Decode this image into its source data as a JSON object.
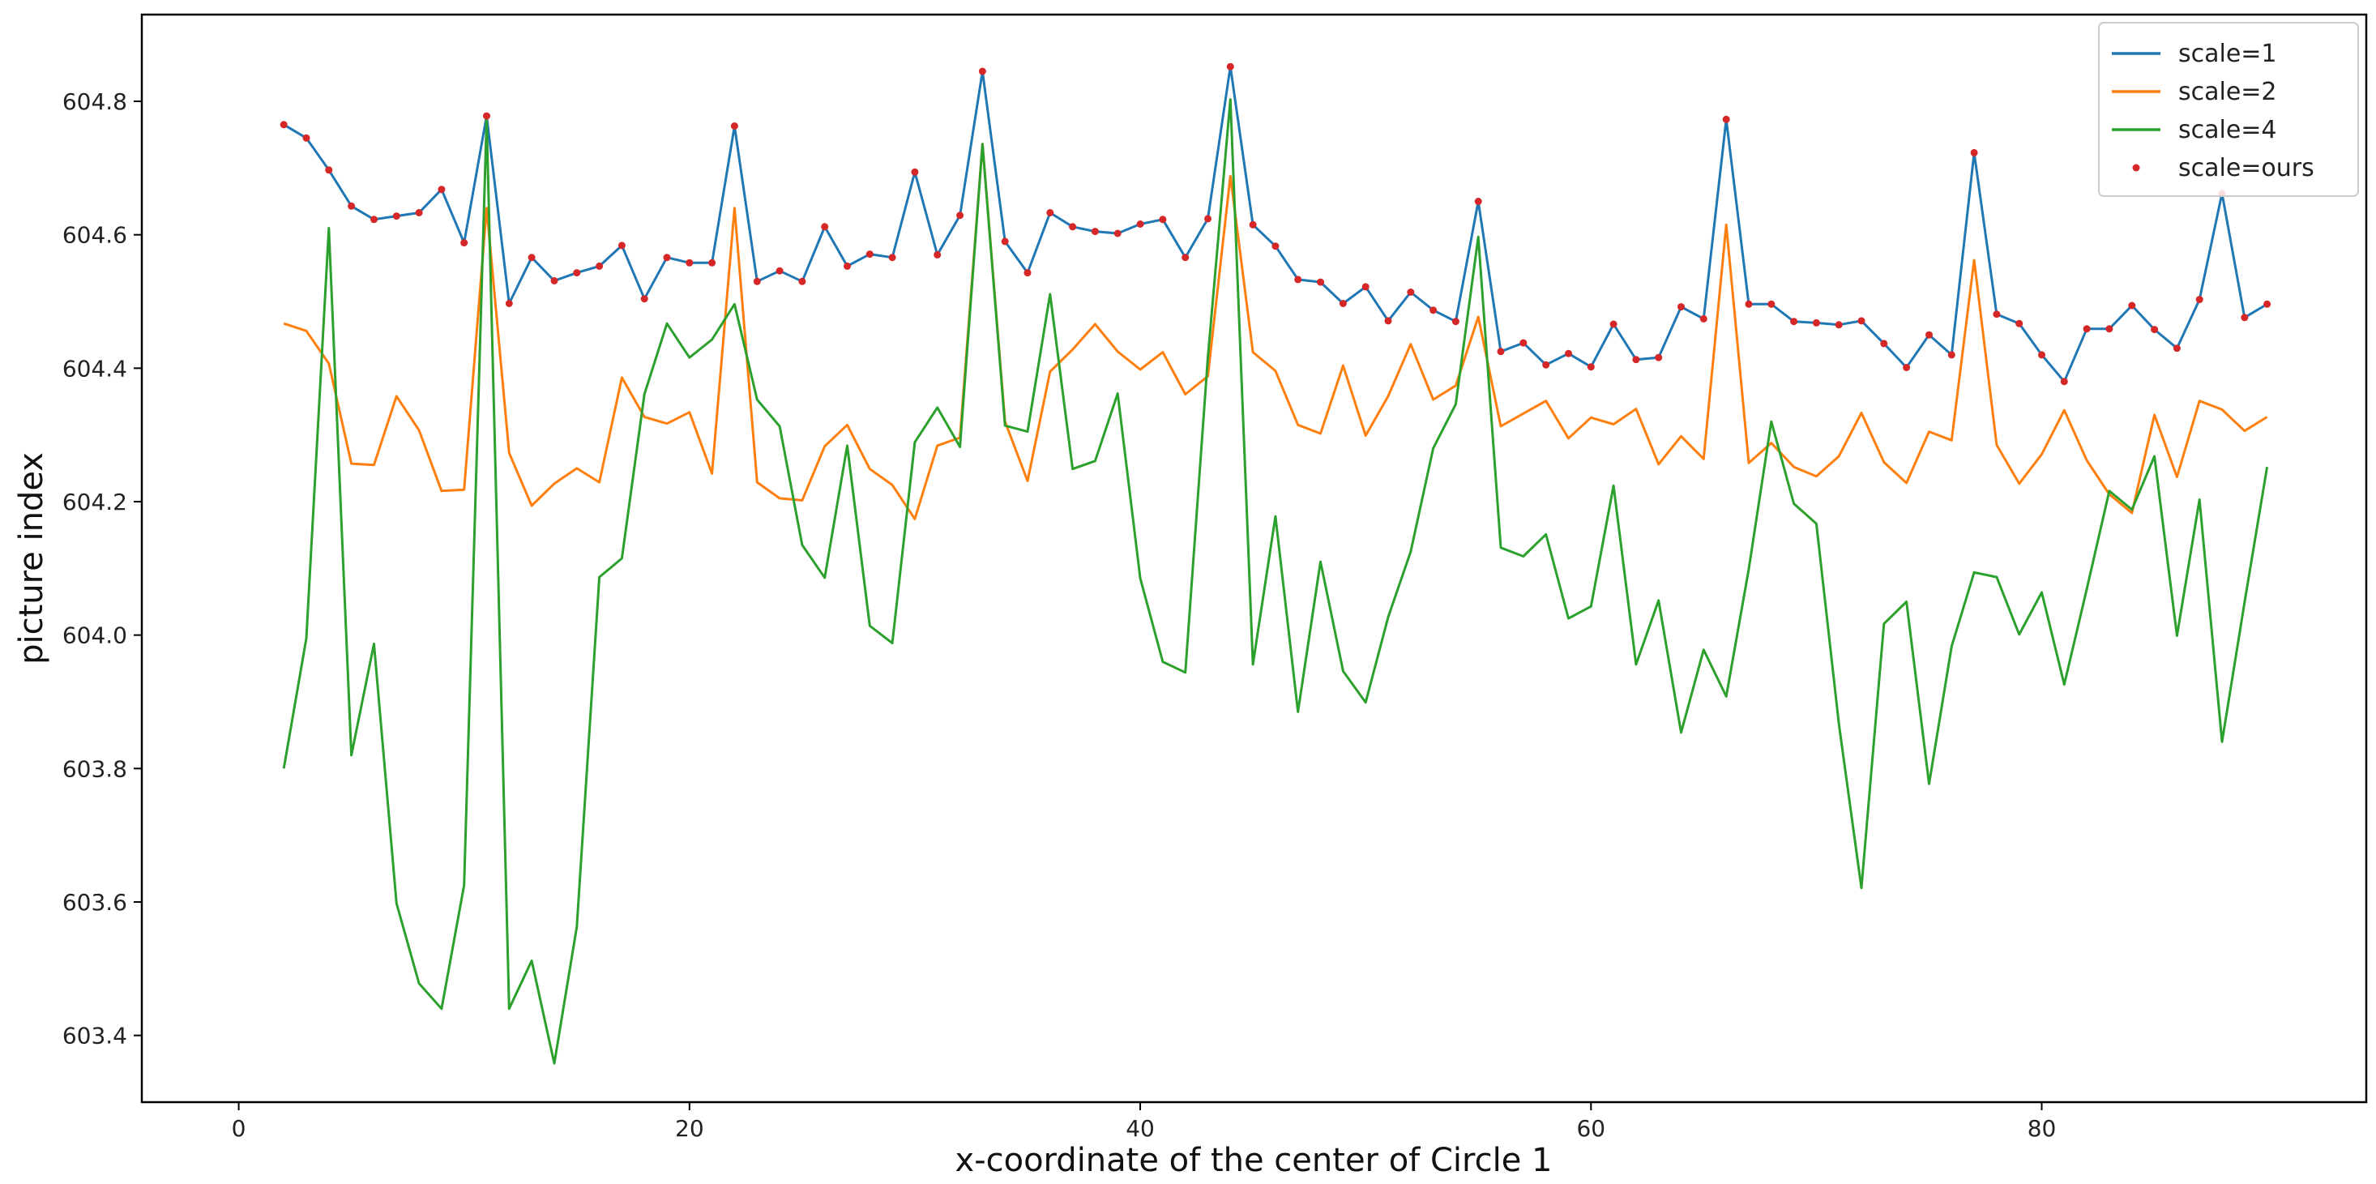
{
  "chart_data": {
    "type": "line",
    "title": "",
    "xlabel": "x-coordinate of the center of Circle 1",
    "ylabel": "picture index",
    "xlim": [
      -4.3,
      94.4
    ],
    "ylim": [
      603.3,
      604.93
    ],
    "xticks": [
      0,
      20,
      40,
      60,
      80
    ],
    "yticks": [
      603.4,
      603.6,
      603.8,
      604.0,
      604.2,
      604.4,
      604.6,
      604.8
    ],
    "grid": false,
    "legend_position": "top-right",
    "x": [
      2,
      3,
      4,
      5,
      6,
      7,
      8,
      9,
      10,
      11,
      12,
      13,
      14,
      15,
      16,
      17,
      18,
      19,
      20,
      21,
      22,
      23,
      24,
      25,
      26,
      27,
      28,
      29,
      30,
      31,
      32,
      33,
      34,
      35,
      36,
      37,
      38,
      39,
      40,
      41,
      42,
      43,
      44,
      45,
      46,
      47,
      48,
      49,
      50,
      51,
      52,
      53,
      54,
      55,
      56,
      57,
      58,
      59,
      60,
      61,
      62,
      63,
      64,
      65,
      66,
      67,
      68,
      69,
      70,
      71,
      72,
      73,
      74,
      75,
      76,
      77,
      78,
      79,
      80,
      81,
      82,
      83,
      84,
      85,
      86,
      87,
      88,
      89,
      90
    ],
    "series": [
      {
        "name": "scale=1",
        "color": "#1f77b4",
        "style": "line",
        "values": [
          604.765,
          604.745,
          604.697,
          604.643,
          604.623,
          604.628,
          604.633,
          604.668,
          604.588,
          604.778,
          604.497,
          604.566,
          604.531,
          604.543,
          604.553,
          604.584,
          604.504,
          604.566,
          604.558,
          604.558,
          604.763,
          604.53,
          604.546,
          604.53,
          604.612,
          604.553,
          604.571,
          604.566,
          604.694,
          604.57,
          604.629,
          604.845,
          604.59,
          604.543,
          604.633,
          604.612,
          604.605,
          604.602,
          604.616,
          604.623,
          604.566,
          604.624,
          604.852,
          604.615,
          604.583,
          604.533,
          604.529,
          604.497,
          604.522,
          604.471,
          604.514,
          604.487,
          604.47,
          604.65,
          604.425,
          604.438,
          604.405,
          604.422,
          604.402,
          604.466,
          604.413,
          604.416,
          604.492,
          604.474,
          604.773,
          604.496,
          604.496,
          604.47,
          604.468,
          604.465,
          604.471,
          604.437,
          604.401,
          604.45,
          604.42,
          604.723,
          604.481,
          604.467,
          604.42,
          604.38,
          604.459,
          604.459,
          604.494,
          604.458,
          604.43,
          604.503,
          604.662,
          604.476,
          604.496
        ]
      },
      {
        "name": "scale=2",
        "color": "#ff7f0e",
        "style": "line",
        "values": [
          604.467,
          604.456,
          604.407,
          604.257,
          604.255,
          604.358,
          604.307,
          604.216,
          604.218,
          604.64,
          604.273,
          604.194,
          604.227,
          604.25,
          604.229,
          604.386,
          604.327,
          604.317,
          604.334,
          604.242,
          604.64,
          604.229,
          604.205,
          604.202,
          604.283,
          604.315,
          604.249,
          604.225,
          604.174,
          604.284,
          604.296,
          604.736,
          604.32,
          604.231,
          604.395,
          604.428,
          604.466,
          604.425,
          604.398,
          604.424,
          604.361,
          604.388,
          604.688,
          604.424,
          604.396,
          604.315,
          604.302,
          604.404,
          604.299,
          604.358,
          604.436,
          604.353,
          604.374,
          604.477,
          604.313,
          604.332,
          604.351,
          604.295,
          604.326,
          604.316,
          604.339,
          604.256,
          604.298,
          604.264,
          604.615,
          604.258,
          604.288,
          604.252,
          604.238,
          604.268,
          604.333,
          604.259,
          604.228,
          604.305,
          604.292,
          604.562,
          604.285,
          604.227,
          604.271,
          604.337,
          604.262,
          604.211,
          604.183,
          604.33,
          604.237,
          604.351,
          604.338,
          604.306,
          604.327
        ]
      },
      {
        "name": "scale=4",
        "color": "#2ca02c",
        "style": "line",
        "values": [
          603.8,
          603.995,
          604.61,
          603.82,
          603.987,
          603.598,
          603.478,
          603.44,
          603.625,
          604.773,
          603.44,
          603.512,
          603.358,
          603.563,
          604.087,
          604.115,
          604.361,
          604.467,
          604.416,
          604.443,
          604.496,
          604.353,
          604.313,
          604.135,
          604.086,
          604.284,
          604.014,
          603.988,
          604.289,
          604.341,
          604.282,
          604.736,
          604.314,
          604.305,
          604.511,
          604.249,
          604.261,
          604.362,
          604.085,
          603.96,
          603.944,
          604.416,
          604.803,
          603.956,
          604.178,
          603.885,
          604.11,
          603.946,
          603.899,
          604.027,
          604.125,
          604.28,
          604.346,
          604.597,
          604.131,
          604.118,
          604.151,
          604.025,
          604.043,
          604.224,
          603.956,
          604.052,
          603.854,
          603.978,
          603.908,
          604.099,
          604.32,
          604.197,
          604.167,
          603.867,
          603.621,
          604.017,
          604.05,
          603.777,
          603.983,
          604.094,
          604.087,
          604.001,
          604.064,
          603.926,
          604.069,
          604.216,
          604.188,
          604.268,
          603.999,
          604.203,
          603.84,
          604.049,
          604.252
        ]
      },
      {
        "name": "scale=ours",
        "color": "#d62728",
        "style": "points",
        "values": [
          604.765,
          604.745,
          604.697,
          604.643,
          604.623,
          604.628,
          604.633,
          604.668,
          604.588,
          604.778,
          604.497,
          604.566,
          604.531,
          604.543,
          604.553,
          604.584,
          604.504,
          604.566,
          604.558,
          604.558,
          604.763,
          604.53,
          604.546,
          604.53,
          604.612,
          604.553,
          604.571,
          604.566,
          604.694,
          604.57,
          604.629,
          604.845,
          604.59,
          604.543,
          604.633,
          604.612,
          604.605,
          604.602,
          604.616,
          604.623,
          604.566,
          604.624,
          604.852,
          604.615,
          604.583,
          604.533,
          604.529,
          604.497,
          604.522,
          604.471,
          604.514,
          604.487,
          604.47,
          604.65,
          604.425,
          604.438,
          604.405,
          604.422,
          604.402,
          604.466,
          604.413,
          604.416,
          604.492,
          604.474,
          604.773,
          604.496,
          604.496,
          604.47,
          604.468,
          604.465,
          604.471,
          604.437,
          604.401,
          604.45,
          604.42,
          604.723,
          604.481,
          604.467,
          604.42,
          604.38,
          604.459,
          604.459,
          604.494,
          604.458,
          604.43,
          604.503,
          604.662,
          604.476,
          604.496
        ]
      }
    ]
  }
}
